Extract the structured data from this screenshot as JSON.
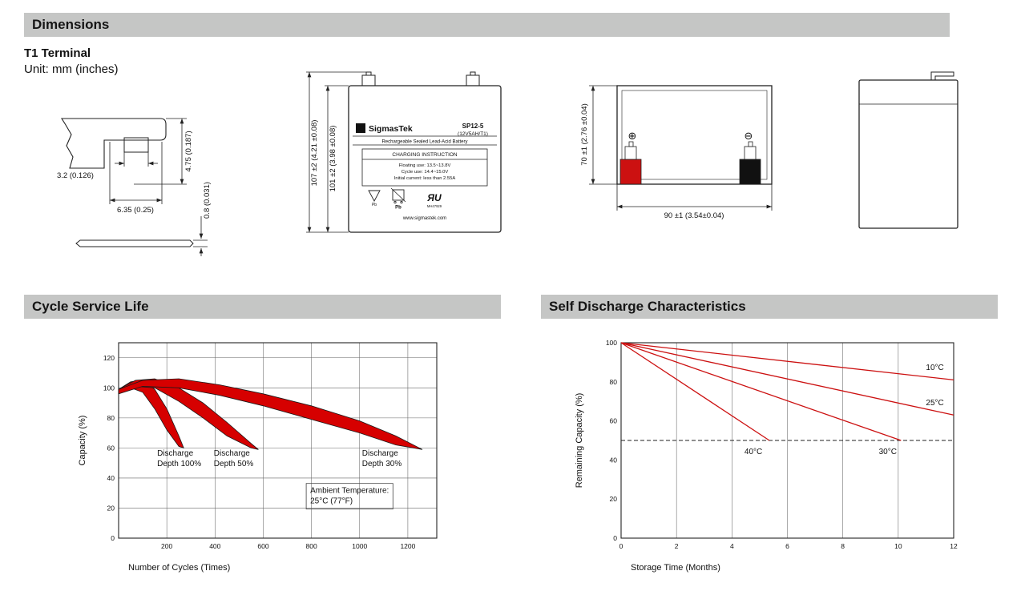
{
  "sections": {
    "dimensions_title": "Dimensions",
    "terminal_type": "T1 Terminal",
    "unit_note": "Unit: mm (inches)",
    "cycle_title": "Cycle Service Life",
    "self_discharge_title": "Self Discharge Characteristics"
  },
  "drawings": {
    "terminal": {
      "dim_height": "4.75 (0.187)",
      "dim_slot": "3.2 (0.126)",
      "dim_width": "6.35 (0.25)",
      "dim_thickness": "0.8 (0.031)"
    },
    "front": {
      "dim_total": "107 ±2 (4.21 ±0.08)",
      "dim_body": "101 ±2 (3.98 ±0.08)",
      "label": {
        "sigma": "Σ",
        "brand": "SigmasTek",
        "model": "SP12-5",
        "spec": "(12V5AH/T1)",
        "subtitle": "Rechargeable Sealed Lead-Acid Battery",
        "charging_title": "CHARGING INSTRUCTION",
        "line1": "Floating use: 13.5~13.8V",
        "line2": "Cycle use: 14.4~15.0V",
        "line3": "Initial current: less than 2.55A",
        "pb_recycle": "Pb",
        "pb_bin": "Pb",
        "ul_mark": "ЯU",
        "ul_code": "MH47929",
        "website": "www.sigmastek.com"
      }
    },
    "back": {
      "dim_height": "70 ±1 (2.76 ±0.04)",
      "dim_width": "90 ±1 (3.54±0.04)",
      "plus": "⊕",
      "minus": "⊖",
      "positive_color": "#cc1111",
      "negative_color": "#111111"
    }
  },
  "chart_data": [
    {
      "name": "cycle-service-life",
      "type": "area",
      "title": "Cycle Service Life",
      "xlabel": "Number of Cycles (Times)",
      "ylabel": "Capacity (%)",
      "xlim": [
        0,
        1320
      ],
      "ylim": [
        0,
        130
      ],
      "xticks": [
        200,
        400,
        600,
        800,
        1000,
        1200
      ],
      "yticks": [
        0,
        20,
        40,
        60,
        80,
        100,
        120
      ],
      "grid": {
        "vertical": true,
        "horizontal": true
      },
      "band_color": "#d60000",
      "band_edge_color": "#1a1a1a",
      "bands": [
        {
          "name": "discharge-depth-100",
          "upper": [
            [
              0,
              99
            ],
            [
              50,
              104
            ],
            [
              100,
              105
            ],
            [
              150,
              99
            ],
            [
              200,
              86
            ],
            [
              250,
              68
            ],
            [
              270,
              60
            ]
          ],
          "lower": [
            [
              0,
              96
            ],
            [
              50,
              100
            ],
            [
              100,
              97
            ],
            [
              150,
              86
            ],
            [
              200,
              72
            ],
            [
              250,
              61
            ],
            [
              270,
              60
            ]
          ]
        },
        {
          "name": "discharge-depth-50",
          "upper": [
            [
              0,
              99
            ],
            [
              70,
              105
            ],
            [
              150,
              106
            ],
            [
              250,
              100
            ],
            [
              350,
              90
            ],
            [
              450,
              77
            ],
            [
              550,
              63
            ],
            [
              580,
              59
            ]
          ],
          "lower": [
            [
              0,
              96
            ],
            [
              70,
              101
            ],
            [
              150,
              100
            ],
            [
              250,
              91
            ],
            [
              350,
              80
            ],
            [
              450,
              68
            ],
            [
              550,
              60
            ],
            [
              580,
              59
            ]
          ]
        },
        {
          "name": "discharge-depth-30",
          "upper": [
            [
              0,
              99
            ],
            [
              100,
              105
            ],
            [
              250,
              106
            ],
            [
              420,
              102
            ],
            [
              600,
              96
            ],
            [
              800,
              88
            ],
            [
              1000,
              78
            ],
            [
              1150,
              68
            ],
            [
              1260,
              59
            ]
          ],
          "lower": [
            [
              0,
              96
            ],
            [
              100,
              101
            ],
            [
              250,
              100
            ],
            [
              420,
              95
            ],
            [
              600,
              88
            ],
            [
              800,
              79
            ],
            [
              1000,
              70
            ],
            [
              1150,
              62
            ],
            [
              1260,
              59
            ]
          ]
        }
      ],
      "annotations": [
        {
          "name": "label-depth-100",
          "x": 160,
          "y": 55,
          "lines": [
            "Discharge",
            "Depth 100%"
          ]
        },
        {
          "name": "label-depth-50",
          "x": 395,
          "y": 55,
          "lines": [
            "Discharge",
            "Depth 50%"
          ]
        },
        {
          "name": "label-depth-30",
          "x": 1010,
          "y": 55,
          "lines": [
            "Discharge",
            "Depth 30%"
          ]
        },
        {
          "name": "ambient-note",
          "x": 795,
          "y": 30,
          "lines": [
            "Ambient Temperature:",
            "25°C (77°F)"
          ],
          "boxed": true
        }
      ]
    },
    {
      "name": "self-discharge-characteristics",
      "type": "line",
      "title": "Self Discharge Characteristics",
      "xlabel": "Storage Time (Months)",
      "ylabel": "Remaining Capacity (%)",
      "xlim": [
        0,
        12
      ],
      "ylim": [
        0,
        100
      ],
      "xticks": [
        0,
        2,
        4,
        6,
        8,
        10,
        12
      ],
      "yticks": [
        0,
        20,
        40,
        60,
        80,
        100
      ],
      "grid": {
        "vertical": true,
        "horizontal": false
      },
      "line_color": "#cc1111",
      "series": [
        {
          "name": "temp-10c",
          "label": "10°C",
          "points": [
            [
              0,
              100
            ],
            [
              12,
              81
            ]
          ],
          "label_x": 11.0,
          "label_y": 86
        },
        {
          "name": "temp-25c",
          "label": "25°C",
          "points": [
            [
              0,
              100
            ],
            [
              12,
              63
            ]
          ],
          "label_x": 11.0,
          "label_y": 68
        },
        {
          "name": "temp-30c",
          "label": "30°C",
          "points": [
            [
              0,
              100
            ],
            [
              10.1,
              50
            ]
          ],
          "label_x": 9.3,
          "label_y": 43
        },
        {
          "name": "temp-40c",
          "label": "40°C",
          "points": [
            [
              0,
              100
            ],
            [
              5.35,
              50
            ]
          ],
          "label_x": 4.45,
          "label_y": 43
        }
      ],
      "reference_lines": [
        {
          "name": "fifty-percent-line",
          "y": 50,
          "style": "dashed",
          "color": "#222222"
        }
      ]
    }
  ]
}
